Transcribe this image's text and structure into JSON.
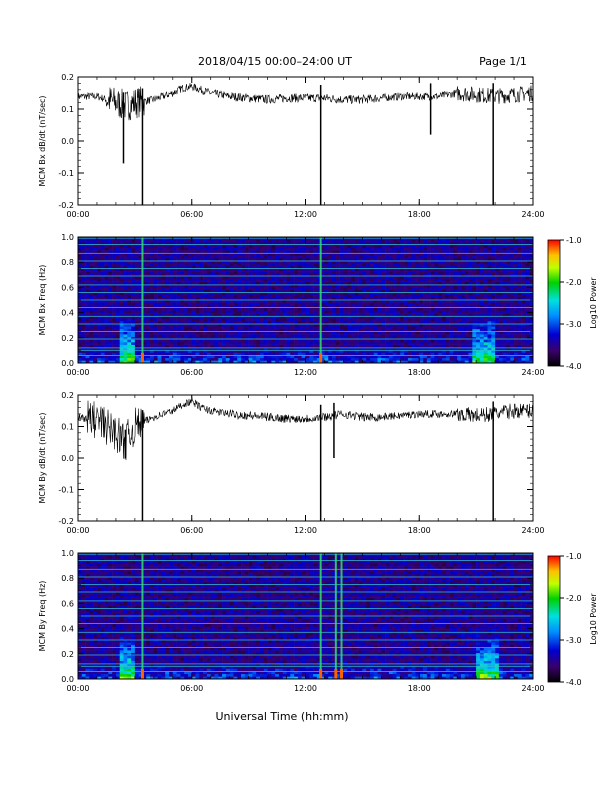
{
  "header": {
    "title": "2018/04/15   00:00–24:00 UT",
    "page": "Page 1/1"
  },
  "footer": {
    "xlabel": "Universal Time (hh:mm)"
  },
  "x_ticks": [
    "00:00",
    "06:00",
    "12:00",
    "18:00",
    "24:00"
  ],
  "colorbar": {
    "label": "Log10 Power",
    "ticks": [
      "-1.0",
      "-2.0",
      "-3.0",
      "-4.0"
    ],
    "range": [
      -4.0,
      -1.0
    ]
  },
  "chart_data": [
    {
      "type": "line",
      "ylabel": "MCM Bx dB/dt (nT/sec)",
      "ylim": [
        -0.2,
        0.2
      ],
      "yticks": [
        "0.2",
        "0.1",
        "0.0",
        "-0.1",
        "-0.2"
      ],
      "xlim_hours": [
        0,
        24
      ],
      "baseline": [
        [
          0,
          0.14
        ],
        [
          1,
          0.14
        ],
        [
          2,
          0.12
        ],
        [
          2.5,
          0.11
        ],
        [
          3,
          0.12
        ],
        [
          4,
          0.13
        ],
        [
          5,
          0.15
        ],
        [
          5.5,
          0.165
        ],
        [
          6,
          0.17
        ],
        [
          6.5,
          0.16
        ],
        [
          7,
          0.15
        ],
        [
          8,
          0.14
        ],
        [
          9,
          0.135
        ],
        [
          10,
          0.13
        ],
        [
          11,
          0.135
        ],
        [
          12,
          0.135
        ],
        [
          13,
          0.135
        ],
        [
          14,
          0.13
        ],
        [
          15,
          0.13
        ],
        [
          16,
          0.135
        ],
        [
          17,
          0.14
        ],
        [
          18,
          0.14
        ],
        [
          19,
          0.14
        ],
        [
          20,
          0.15
        ],
        [
          21,
          0.145
        ],
        [
          22,
          0.14
        ],
        [
          23,
          0.145
        ],
        [
          24,
          0.15
        ]
      ],
      "spikes": [
        [
          2.4,
          -0.07
        ],
        [
          3.4,
          -0.2
        ],
        [
          12.8,
          -0.2
        ],
        [
          18.6,
          0.02
        ],
        [
          21.9,
          -0.2
        ]
      ]
    },
    {
      "type": "heatmap",
      "ylabel": "MCM Bx Freq (Hz)",
      "ylim": [
        0.0,
        1.0
      ],
      "yticks": [
        "1.0",
        "0.8",
        "0.6",
        "0.4",
        "0.2",
        "0.0"
      ],
      "line_freqs": [
        0.06,
        0.1,
        0.12,
        0.19,
        0.25,
        0.31,
        0.37,
        0.44,
        0.5,
        0.56,
        0.62,
        0.69,
        0.75,
        0.81,
        0.87,
        0.94,
        0.99
      ],
      "bright_times": [
        3.4,
        12.8
      ],
      "active_periods": [
        [
          2.2,
          3.0
        ],
        [
          20.8,
          22.0
        ]
      ]
    },
    {
      "type": "line",
      "ylabel": "MCM By dB/dt (nT/sec)",
      "ylim": [
        -0.2,
        0.2
      ],
      "yticks": [
        "0.2",
        "0.1",
        "0.0",
        "-0.1",
        "-0.2"
      ],
      "xlim_hours": [
        0,
        24
      ],
      "baseline": [
        [
          0,
          0.13
        ],
        [
          1,
          0.12
        ],
        [
          2,
          0.08
        ],
        [
          2.5,
          0.05
        ],
        [
          3,
          0.1
        ],
        [
          4,
          0.13
        ],
        [
          5,
          0.15
        ],
        [
          5.5,
          0.17
        ],
        [
          6,
          0.18
        ],
        [
          6.5,
          0.16
        ],
        [
          7,
          0.15
        ],
        [
          8,
          0.14
        ],
        [
          9,
          0.135
        ],
        [
          10,
          0.13
        ],
        [
          11,
          0.125
        ],
        [
          12,
          0.125
        ],
        [
          13,
          0.13
        ],
        [
          14,
          0.14
        ],
        [
          15,
          0.13
        ],
        [
          16,
          0.13
        ],
        [
          17,
          0.135
        ],
        [
          18,
          0.14
        ],
        [
          19,
          0.14
        ],
        [
          20,
          0.14
        ],
        [
          21,
          0.135
        ],
        [
          22,
          0.14
        ],
        [
          23,
          0.15
        ],
        [
          24,
          0.15
        ]
      ],
      "spikes": [
        [
          2.5,
          0.0
        ],
        [
          3.4,
          -0.2
        ],
        [
          12.8,
          -0.2
        ],
        [
          13.5,
          0.0
        ],
        [
          21.9,
          -0.2
        ]
      ]
    },
    {
      "type": "heatmap",
      "ylabel": "MCM By Freq (Hz)",
      "ylim": [
        0.0,
        1.0
      ],
      "yticks": [
        "1.0",
        "0.8",
        "0.6",
        "0.4",
        "0.2",
        "0.0"
      ],
      "line_freqs": [
        0.06,
        0.1,
        0.12,
        0.19,
        0.25,
        0.31,
        0.37,
        0.44,
        0.5,
        0.56,
        0.62,
        0.69,
        0.75,
        0.81,
        0.87,
        0.94,
        0.99
      ],
      "bright_times": [
        3.4,
        12.8,
        13.6,
        13.9
      ],
      "active_periods": [
        [
          2.2,
          3.0
        ],
        [
          21.0,
          22.2
        ]
      ]
    }
  ]
}
